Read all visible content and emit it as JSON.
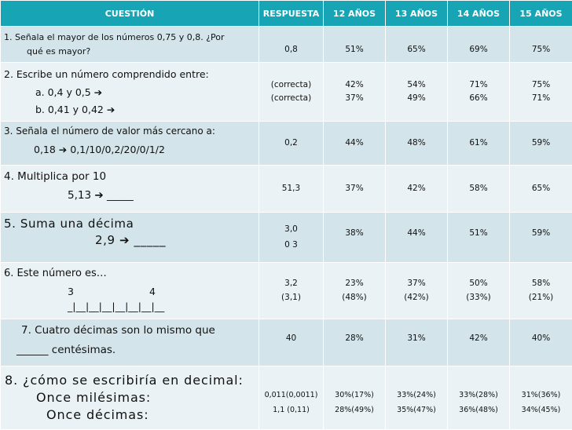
{
  "header": {
    "question": "CUESTIÓN",
    "answer": "RESPUESTA",
    "age12": "12 AÑOS",
    "age13": "13 AÑOS",
    "age14": "14 AÑOS",
    "age15": "15 AÑOS"
  },
  "rows": [
    {
      "q_line1": "1.    Señala el mayor de los números 0,75 y 0,8. ¿Por",
      "q_line2": "qué es mayor?",
      "answer": "0,8",
      "p12": "51%",
      "p13": "65%",
      "p14": "69%",
      "p15": "75%"
    },
    {
      "q_line1": "2.     Escribe un número comprendido entre:",
      "q_line2": "a.  0,4 y 0,5 ➔",
      "q_line3": "b.  0,41 y 0,42 ➔",
      "answer_a": "(correcta)",
      "answer_b": "(correcta)",
      "p12_a": "42%",
      "p12_b": "37%",
      "p13_a": "54%",
      "p13_b": "49%",
      "p14_a": "71%",
      "p14_b": "66%",
      "p15_a": "75%",
      "p15_b": "71%"
    },
    {
      "q_line1": "3. Señala el número de valor más cercano a:",
      "q_line2": "0,18 ➔ 0,1/10/0,2/20/0/1/2",
      "answer": "0,2",
      "p12": "44%",
      "p13": "48%",
      "p14": "61%",
      "p15": "59%"
    },
    {
      "q_line1": "4.          Multiplica por 10",
      "q_line2": "5,13 ➔ _____",
      "answer": "51,3",
      "p12": "37%",
      "p13": "42%",
      "p14": "58%",
      "p15": "65%"
    },
    {
      "q_line1": "5.          Suma una décima",
      "q_line2": "2,9 ➔ _____",
      "answer_a": "3,0",
      "answer_b": "0 3",
      "p12": "38%",
      "p13": "44%",
      "p14": "51%",
      "p15": "59%"
    },
    {
      "q_line1": "6. Este número es…",
      "q_num1": "3",
      "q_num2": "4",
      "q_line3": "_|__|__|__|__|__|__|__",
      "answer_a": "3,2",
      "answer_b": "(3,1)",
      "p12_a": "23%",
      "p12_b": "(48%)",
      "p13_a": "37%",
      "p13_b": "(42%)",
      "p14_a": "50%",
      "p14_b": "(33%)",
      "p15_a": "58%",
      "p15_b": "(21%)"
    },
    {
      "q_line1": "7. Cuatro décimas son lo mismo que",
      "q_line2": "______ centésimas.",
      "answer": "40",
      "p12": "28%",
      "p13": "31%",
      "p14": "42%",
      "p15": "40%"
    },
    {
      "q_line1": "8. ¿cómo se escribiría en decimal:",
      "q_line2": "Once milésimas:",
      "q_line3": "Once décimas:",
      "answer_a": "0,011(0,0011)",
      "answer_b": "1,1 (0,11)",
      "p12_a": "30%(17%)",
      "p12_b": "28%(49%)",
      "p13_a": "33%(24%)",
      "p13_b": "35%(47%)",
      "p14_a": "33%(28%)",
      "p14_b": "36%(48%)",
      "p15_a": "31%(36%)",
      "p15_b": "34%(45%)"
    }
  ]
}
